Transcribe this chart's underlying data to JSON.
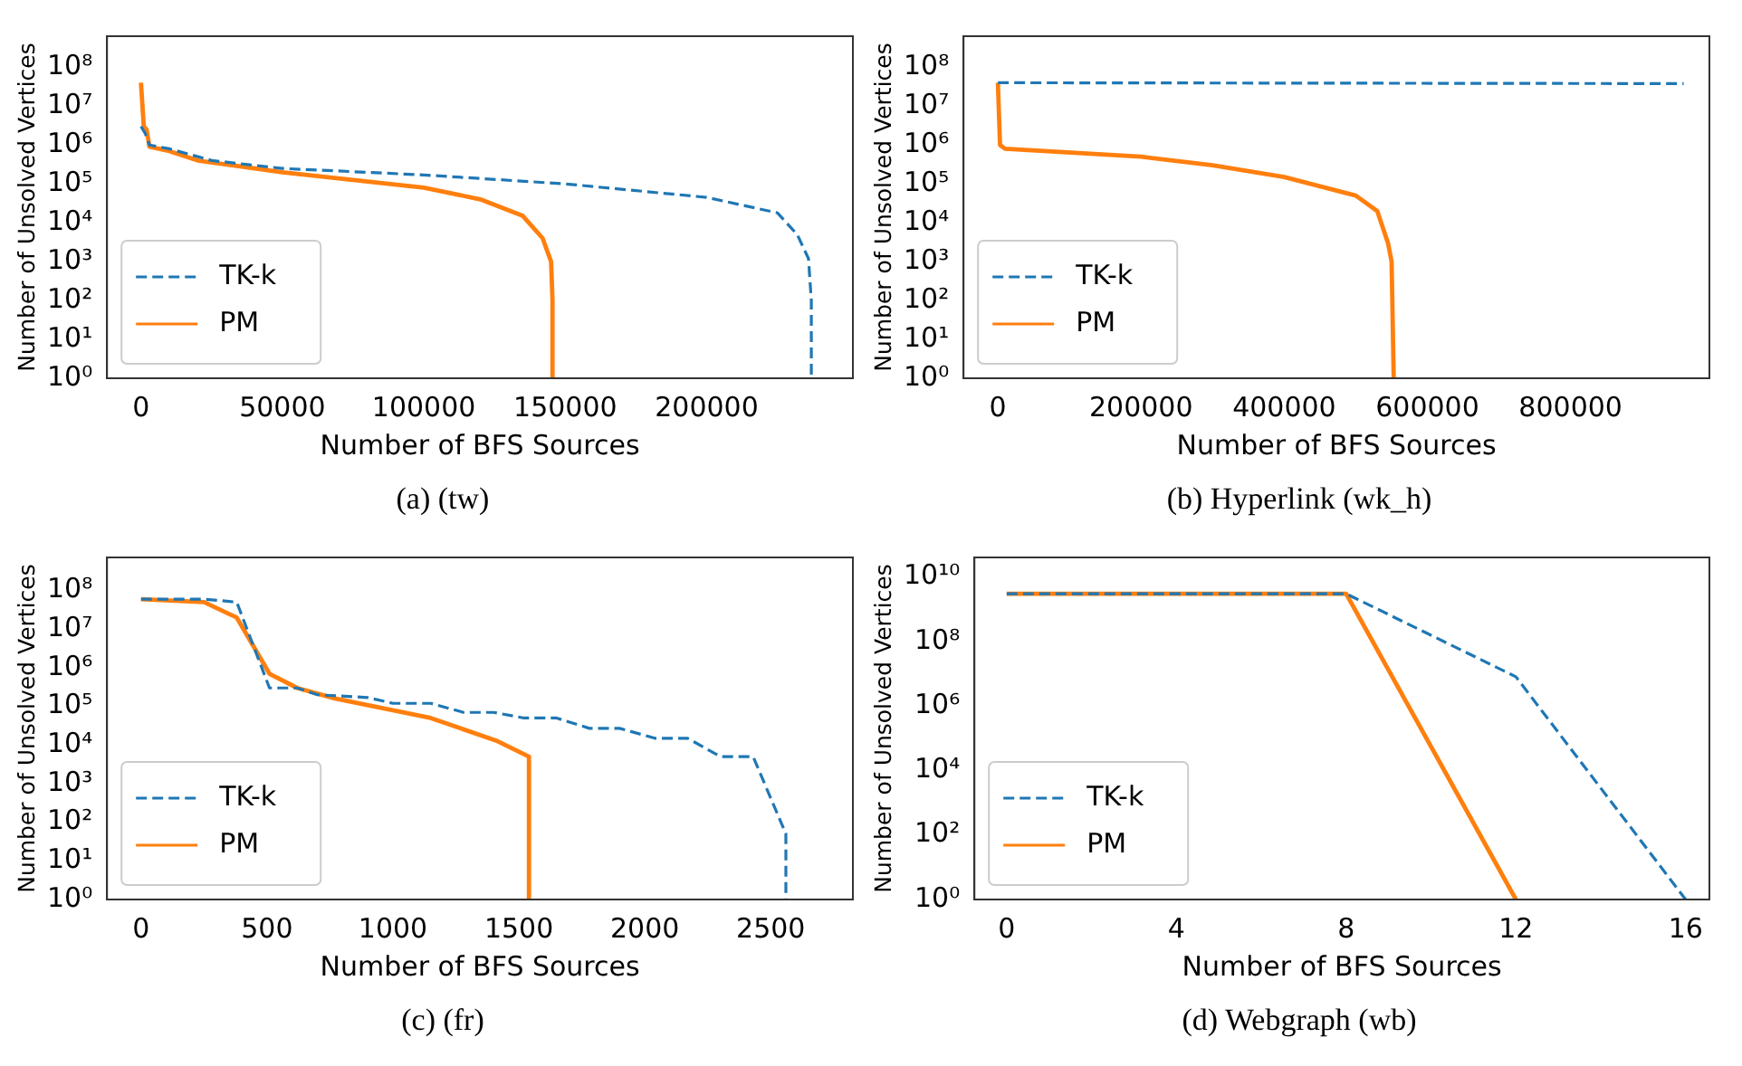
{
  "chart_data": [
    {
      "type": "line",
      "title": "(a) (tw)",
      "xlabel": "Number of BFS Sources",
      "ylabel": "Number of Unsolved Vertices",
      "log": "y",
      "grid": false,
      "legend": "bottom left",
      "xlim": [
        -12000,
        251700
      ],
      "xticks": [
        0,
        50000,
        100000,
        150000,
        200000
      ],
      "ylim": [
        1,
        630000000
      ],
      "yticks": [
        {
          "value": 1,
          "label": "10⁰"
        },
        {
          "value": 10,
          "label": "10¹"
        },
        {
          "value": 100,
          "label": "10²"
        },
        {
          "value": 1000,
          "label": "10³"
        },
        {
          "value": 10000,
          "label": "10⁴"
        },
        {
          "value": 100000,
          "label": "10⁵"
        },
        {
          "value": 1000000,
          "label": "10⁶"
        },
        {
          "value": 10000000,
          "label": "10⁷"
        },
        {
          "value": 100000000,
          "label": "10⁸"
        }
      ],
      "series": [
        {
          "name": "TK-k",
          "color": "#1f77b4",
          "line_style": "dashed",
          "x": [
            0,
            1500,
            3000,
            10000,
            25000,
            50000,
            100000,
            150000,
            200000,
            225000,
            232000,
            236000,
            237000,
            237000
          ],
          "values": [
            3000000,
            2000000,
            1000000,
            800000,
            400000,
            250000,
            170000,
            100000,
            45000,
            18000,
            5000,
            1200,
            100,
            1
          ]
        },
        {
          "name": "PM",
          "color": "#ff7f0e",
          "line_style": "solid",
          "x": [
            0,
            1000,
            2000,
            3000,
            10000,
            20000,
            50000,
            100000,
            120000,
            135000,
            142000,
            145000,
            145500,
            145500
          ],
          "values": [
            40000000,
            3000000,
            2500000,
            900000,
            700000,
            400000,
            200000,
            80000,
            40000,
            15000,
            4000,
            1000,
            100,
            1
          ]
        }
      ]
    },
    {
      "type": "line",
      "title": "(b) Hyperlink (wk_h)",
      "xlabel": "Number of BFS Sources",
      "ylabel": "Number of Unsolved Vertices",
      "log": "y",
      "grid": false,
      "legend": "bottom left",
      "xlim": [
        -48000,
        994000
      ],
      "xticks": [
        0,
        200000,
        400000,
        600000,
        800000
      ],
      "ylim": [
        1,
        630000000
      ],
      "yticks": [
        {
          "value": 1,
          "label": "10⁰"
        },
        {
          "value": 10,
          "label": "10¹"
        },
        {
          "value": 100,
          "label": "10²"
        },
        {
          "value": 1000,
          "label": "10³"
        },
        {
          "value": 10000,
          "label": "10⁴"
        },
        {
          "value": 100000,
          "label": "10⁵"
        },
        {
          "value": 1000000,
          "label": "10⁶"
        },
        {
          "value": 10000000,
          "label": "10⁷"
        },
        {
          "value": 100000000,
          "label": "10⁸"
        }
      ],
      "series": [
        {
          "name": "TK-k",
          "color": "#1f77b4",
          "line_style": "dashed",
          "x": [
            0,
            958000
          ],
          "values": [
            40000000,
            38000000
          ]
        },
        {
          "name": "PM",
          "color": "#ff7f0e",
          "line_style": "solid",
          "x": [
            0,
            3000,
            10000,
            200000,
            300000,
            400000,
            500000,
            530000,
            545000,
            550000,
            553000
          ],
          "values": [
            40000000,
            1000000,
            800000,
            500000,
            300000,
            150000,
            50000,
            20000,
            3000,
            1000,
            1
          ]
        }
      ]
    },
    {
      "type": "line",
      "title": "(c) (fr)",
      "xlabel": "Number of BFS Sources",
      "ylabel": "Number of Unsolved Vertices",
      "log": "y",
      "grid": false,
      "legend": "bottom left",
      "xlim": [
        -135,
        2826
      ],
      "xticks": [
        0,
        500,
        1000,
        1500,
        2000,
        2500
      ],
      "ylim": [
        1,
        720000000
      ],
      "yticks": [
        {
          "value": 1,
          "label": "10⁰"
        },
        {
          "value": 10,
          "label": "10¹"
        },
        {
          "value": 100,
          "label": "10²"
        },
        {
          "value": 1000,
          "label": "10³"
        },
        {
          "value": 10000,
          "label": "10⁴"
        },
        {
          "value": 100000,
          "label": "10⁵"
        },
        {
          "value": 1000000,
          "label": "10⁶"
        },
        {
          "value": 10000000,
          "label": "10⁷"
        },
        {
          "value": 100000000,
          "label": "10⁸"
        }
      ],
      "series": [
        {
          "name": "TK-k",
          "color": "#1f77b4",
          "line_style": "dashed",
          "x": [
            0,
            250,
            380,
            510,
            620,
            700,
            900,
            1000,
            1150,
            1280,
            1400,
            1520,
            1650,
            1780,
            1900,
            2040,
            2170,
            2300,
            2430,
            2560,
            2560
          ],
          "values": [
            60000000,
            60000000,
            50000000,
            300000,
            300000,
            200000,
            170000,
            120000,
            120000,
            70000,
            70000,
            50000,
            50000,
            27000,
            27000,
            15000,
            15000,
            5000,
            5000,
            50,
            1
          ]
        },
        {
          "name": "PM",
          "color": "#ff7f0e",
          "line_style": "solid",
          "x": [
            0,
            250,
            380,
            510,
            620,
            770,
            1150,
            1410,
            1540,
            1540
          ],
          "values": [
            60000000,
            50000000,
            20000000,
            700000,
            300000,
            160000,
            50000,
            13000,
            5000,
            1
          ]
        }
      ]
    },
    {
      "type": "line",
      "title": "(d) Webgraph (wb)",
      "xlabel": "Number of BFS Sources",
      "ylabel": "Number of Unsolved Vertices",
      "log": "y",
      "grid": false,
      "legend": "bottom left",
      "xlim": [
        -0.76,
        16.56
      ],
      "xticks": [
        0,
        4,
        8,
        12,
        16
      ],
      "ylim": [
        1,
        40000000000
      ],
      "yticks": [
        {
          "value": 1,
          "label": "10⁰"
        },
        {
          "value": 100,
          "label": "10²"
        },
        {
          "value": 10000,
          "label": "10⁴"
        },
        {
          "value": 1000000,
          "label": "10⁶"
        },
        {
          "value": 100000000,
          "label": "10⁸"
        },
        {
          "value": 10000000000,
          "label": "10¹⁰"
        }
      ],
      "series": [
        {
          "name": "TK-k",
          "color": "#1f77b4",
          "line_style": "dashed",
          "x": [
            0,
            8,
            12,
            16
          ],
          "values": [
            3000000000,
            3000000000,
            8000000,
            1
          ]
        },
        {
          "name": "PM",
          "color": "#ff7f0e",
          "line_style": "solid",
          "x": [
            0,
            8,
            12
          ],
          "values": [
            3000000000,
            3000000000,
            1
          ]
        }
      ]
    }
  ]
}
